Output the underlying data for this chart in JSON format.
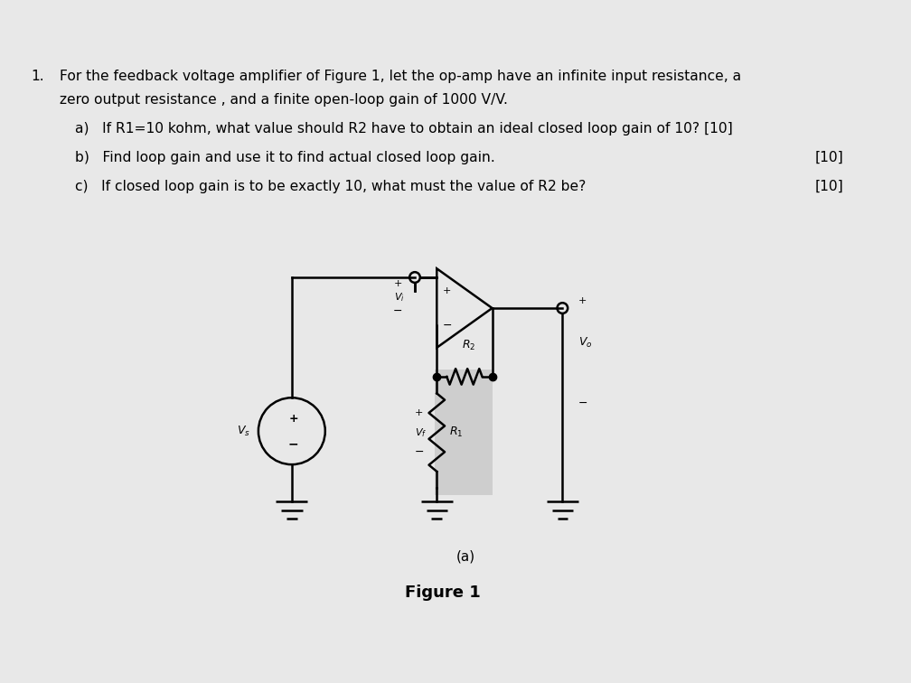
{
  "bg_color": "#e8e8e8",
  "lw": 1.8,
  "lc": "#000000",
  "text_fontsize": 11.2,
  "title_num": "1.",
  "line1": "For the feedback voltage amplifier of Figure 1, let the op-amp have an infinite input resistance, a",
  "line2": "zero output resistance , and a finite open-loop gain of 1000 V/V.",
  "line_a": "a)   If R1=10 kohm, what value should R2 have to obtain an ideal closed loop gain of 10? [10]",
  "line_b": "b)   Find loop gain and use it to find actual closed loop gain.",
  "line_c": "c)   If closed loop gain is to be exactly 10, what must the value of R2 be?",
  "mark_10": "[10]",
  "caption_a": "(a)",
  "fig_title": "Figure 1",
  "shade_color": "#c8c8c8",
  "vs_label": "V_s",
  "vi_label": "V_i",
  "vf_label": "V_f",
  "vo_label": "V_o",
  "r1_label": "R_1",
  "r2_label": "R_2"
}
